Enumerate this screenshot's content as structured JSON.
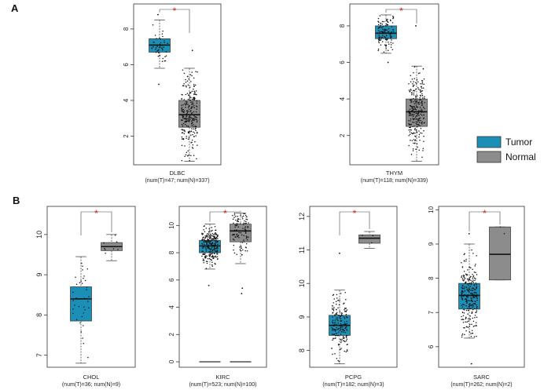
{
  "colors": {
    "tumor": "#1b8fb6",
    "normal": "#8c8c8c",
    "significance": "#e41a1c"
  },
  "legend": {
    "placement": "right",
    "items": [
      {
        "label": "Tumor",
        "color": "#1b8fb6"
      },
      {
        "label": "Normal",
        "color": "#8c8c8c"
      }
    ]
  },
  "chart_data": [
    {
      "type": "box",
      "panel": "A",
      "cancer": "DLBC",
      "sub": "(num(T)=47; num(N)=337)",
      "ylim": [
        0.4,
        9.4
      ],
      "yticks": [
        2,
        4,
        6,
        8
      ],
      "grid": false,
      "significance": "*",
      "series": [
        {
          "name": "Tumor",
          "n": 47,
          "min": 5.8,
          "q1": 6.7,
          "median": 7.1,
          "q3": 7.45,
          "max": 8.5,
          "outliers": [
            4.9,
            8.8
          ]
        },
        {
          "name": "Normal",
          "n": 337,
          "min": 0.6,
          "q1": 2.5,
          "median": 3.2,
          "q3": 4.0,
          "max": 5.8,
          "outliers": [
            6.8
          ]
        }
      ]
    },
    {
      "type": "box",
      "panel": "A",
      "cancer": "THYM",
      "sub": "(num(T)=118; num(N)=339)",
      "ylim": [
        0.4,
        9.2
      ],
      "yticks": [
        2,
        4,
        6,
        8
      ],
      "grid": false,
      "significance": "*",
      "series": [
        {
          "name": "Tumor",
          "n": 118,
          "min": 6.5,
          "q1": 7.3,
          "median": 7.6,
          "q3": 8.0,
          "max": 8.6,
          "outliers": [
            6.0
          ]
        },
        {
          "name": "Normal",
          "n": 339,
          "min": 0.6,
          "q1": 2.5,
          "median": 3.3,
          "q3": 4.0,
          "max": 5.8,
          "outliers": [
            8.0
          ]
        }
      ]
    },
    {
      "type": "box",
      "panel": "B",
      "cancer": "CHOL",
      "sub": "(num(T)=36; num(N)=9)",
      "ylim": [
        6.7,
        10.7
      ],
      "yticks": [
        7,
        8,
        9,
        10
      ],
      "grid": false,
      "significance": "*",
      "series": [
        {
          "name": "Tumor",
          "n": 36,
          "min": 6.8,
          "q1": 7.85,
          "median": 8.4,
          "q3": 8.7,
          "max": 9.45,
          "outliers": []
        },
        {
          "name": "Normal",
          "n": 9,
          "min": 9.35,
          "q1": 9.6,
          "median": 9.7,
          "q3": 9.8,
          "max": 10.0,
          "outliers": []
        }
      ]
    },
    {
      "type": "box",
      "panel": "B",
      "cancer": "KIRC",
      "sub": "(num(T)=523; num(N)=100)",
      "ylim": [
        -0.4,
        11.4
      ],
      "yticks": [
        0,
        2,
        4,
        6,
        8,
        10
      ],
      "grid": false,
      "significance": "*",
      "series": [
        {
          "name": "Tumor",
          "n": 523,
          "min": 6.8,
          "q1": 8.0,
          "median": 8.5,
          "q3": 8.9,
          "max": 10.1,
          "outliers": [
            0,
            5.6
          ]
        },
        {
          "name": "Normal",
          "n": 100,
          "min": 7.2,
          "q1": 8.8,
          "median": 9.6,
          "q3": 10.1,
          "max": 10.9,
          "outliers": [
            0,
            5.0,
            5.4
          ]
        }
      ]
    },
    {
      "type": "box",
      "panel": "B",
      "cancer": "PCPG",
      "sub": "(num(T)=182; num(N)=3)",
      "ylim": [
        7.5,
        12.3
      ],
      "yticks": [
        8,
        9,
        10,
        11,
        12
      ],
      "grid": false,
      "significance": "*",
      "series": [
        {
          "name": "Tumor",
          "n": 182,
          "min": 7.6,
          "q1": 8.45,
          "median": 8.75,
          "q3": 9.05,
          "max": 9.8,
          "outliers": [
            10.9
          ]
        },
        {
          "name": "Normal",
          "n": 3,
          "min": 11.05,
          "q1": 11.2,
          "median": 11.35,
          "q3": 11.45,
          "max": 11.55,
          "outliers": []
        }
      ]
    },
    {
      "type": "box",
      "panel": "B",
      "cancer": "SARC",
      "sub": "(num(T)=262; num(N)=2)",
      "ylim": [
        5.4,
        10.1
      ],
      "yticks": [
        6,
        7,
        8,
        9,
        10
      ],
      "grid": false,
      "significance": "*",
      "series": [
        {
          "name": "Tumor",
          "n": 262,
          "min": 6.25,
          "q1": 7.1,
          "median": 7.5,
          "q3": 7.85,
          "max": 9.0,
          "outliers": [
            5.5,
            9.3
          ]
        },
        {
          "name": "Normal",
          "n": 2,
          "min": 7.95,
          "q1": 7.95,
          "median": 8.7,
          "q3": 9.5,
          "max": 9.5,
          "outliers": []
        }
      ]
    }
  ],
  "panel_labels": [
    "A",
    "B"
  ]
}
